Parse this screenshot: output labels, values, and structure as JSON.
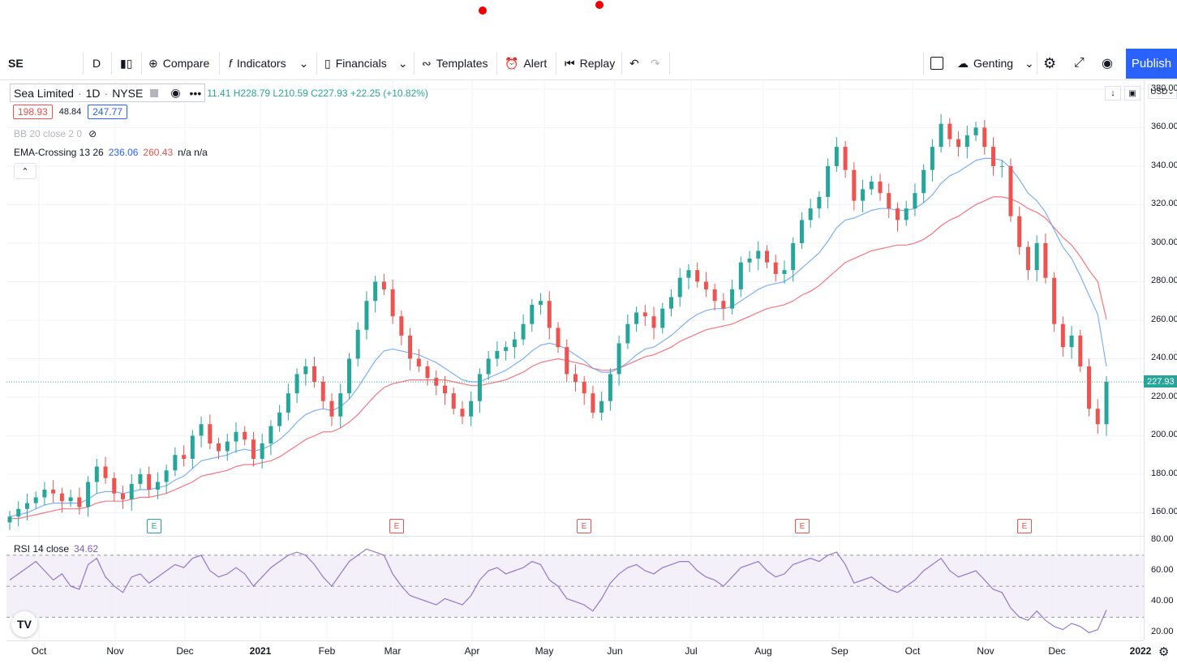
{
  "symbol": "SE",
  "interval": "D",
  "toolbar": {
    "compare": "Compare",
    "indicators": "Indicators",
    "financials": "Financials",
    "templates": "Templates",
    "alert": "Alert",
    "replay": "Replay",
    "layout": "Genting",
    "publish": "Publish"
  },
  "currency": "USD",
  "legend": {
    "title": "Sea Limited",
    "interval": "1D",
    "exchange": "NYSE",
    "ohlc": "11.41 H228.79 L210.59 C227.93 +22.25 (+10.82%)",
    "bid": "198.93",
    "spread": "48.84",
    "ask": "247.77",
    "bb": "BB 20 close 2 0",
    "ema_label": "EMA-Crossing 13 26",
    "ema_fast": "236.06",
    "ema_slow": "260.43",
    "ema_na": "n/a n/a",
    "rsi_label": "RSI 14 close",
    "rsi_value": "34.62"
  },
  "last_price": "227.93",
  "earnings_marker": "E",
  "price_axis": [
    "380.00",
    "360.00",
    "340.00",
    "320.00",
    "300.00",
    "280.00",
    "260.00",
    "240.00",
    "220.00",
    "200.00",
    "180.00",
    "160.00"
  ],
  "rsi_axis": [
    "80.00",
    "60.00",
    "40.00",
    "20.00"
  ],
  "time_axis": [
    "Oct",
    "Nov",
    "Dec",
    "2021",
    "Feb",
    "Mar",
    "Apr",
    "May",
    "Jun",
    "Jul",
    "Aug",
    "Sep",
    "Oct",
    "Nov",
    "Dec",
    "2022"
  ],
  "colors": {
    "up": "#26a69a",
    "down": "#ef5350",
    "ema_fast": "#5b9cf6",
    "ema_slow": "#f7525f",
    "rsi": "#7e57c2"
  },
  "chart_data": {
    "type": "candlestick",
    "ylim": [
      148,
      385
    ],
    "rsi_ylim": [
      15,
      82
    ],
    "close": [
      158,
      162,
      165,
      168,
      172,
      170,
      166,
      168,
      163,
      176,
      184,
      178,
      170,
      167,
      175,
      180,
      172,
      176,
      182,
      190,
      188,
      200,
      206,
      196,
      192,
      197,
      202,
      198,
      188,
      196,
      205,
      212,
      222,
      232,
      236,
      228,
      218,
      210,
      222,
      240,
      255,
      270,
      280,
      276,
      262,
      252,
      240,
      236,
      230,
      226,
      222,
      214,
      210,
      218,
      232,
      240,
      244,
      246,
      250,
      258,
      268,
      270,
      256,
      246,
      232,
      228,
      222,
      212,
      218,
      232,
      248,
      258,
      264,
      262,
      256,
      266,
      272,
      282,
      286,
      280,
      276,
      270,
      266,
      276,
      290,
      292,
      296,
      290,
      284,
      286,
      300,
      312,
      318,
      324,
      340,
      350,
      338,
      322,
      328,
      332,
      326,
      318,
      312,
      318,
      326,
      338,
      350,
      362,
      354,
      350,
      356,
      360,
      350,
      340,
      340,
      314,
      298,
      286,
      300,
      282,
      258,
      246,
      252,
      236,
      214,
      206,
      228
    ],
    "ema_fast": [
      158,
      159,
      160,
      162,
      164,
      165,
      165,
      165,
      165,
      167,
      170,
      171,
      171,
      170,
      171,
      172,
      172,
      173,
      174,
      177,
      179,
      183,
      187,
      188,
      189,
      190,
      192,
      193,
      192,
      193,
      195,
      198,
      202,
      207,
      211,
      213,
      214,
      213,
      215,
      219,
      225,
      232,
      239,
      244,
      245,
      244,
      243,
      242,
      240,
      238,
      235,
      232,
      229,
      228,
      228,
      230,
      232,
      234,
      237,
      240,
      244,
      247,
      248,
      247,
      245,
      242,
      239,
      235,
      233,
      233,
      235,
      238,
      242,
      245,
      246,
      249,
      252,
      256,
      260,
      263,
      265,
      266,
      266,
      267,
      270,
      273,
      276,
      278,
      279,
      280,
      283,
      287,
      291,
      295,
      301,
      308,
      312,
      313,
      315,
      317,
      318,
      318,
      317,
      317,
      318,
      321,
      325,
      331,
      335,
      337,
      340,
      343,
      344,
      344,
      343,
      339,
      333,
      326,
      322,
      316,
      307,
      298,
      292,
      283,
      273,
      263,
      236
    ],
    "ema_slow": [
      157,
      157,
      158,
      159,
      160,
      161,
      162,
      162,
      162,
      163,
      165,
      166,
      166,
      166,
      167,
      168,
      168,
      169,
      170,
      172,
      174,
      176,
      179,
      180,
      181,
      182,
      184,
      185,
      185,
      186,
      187,
      189,
      192,
      195,
      198,
      200,
      202,
      202,
      204,
      207,
      211,
      216,
      221,
      225,
      227,
      228,
      229,
      229,
      229,
      229,
      229,
      228,
      227,
      226,
      226,
      227,
      228,
      229,
      231,
      233,
      236,
      238,
      239,
      240,
      239,
      238,
      237,
      235,
      234,
      234,
      235,
      237,
      239,
      241,
      242,
      244,
      246,
      249,
      251,
      253,
      255,
      256,
      257,
      258,
      260,
      262,
      264,
      266,
      267,
      268,
      270,
      273,
      275,
      278,
      282,
      286,
      290,
      292,
      294,
      296,
      297,
      298,
      299,
      299,
      300,
      302,
      305,
      309,
      312,
      314,
      317,
      320,
      322,
      324,
      324,
      323,
      321,
      318,
      316,
      313,
      308,
      303,
      299,
      293,
      286,
      280,
      260.4
    ],
    "rsi": [
      54,
      58,
      62,
      66,
      60,
      54,
      58,
      50,
      48,
      64,
      68,
      56,
      50,
      46,
      56,
      58,
      52,
      56,
      60,
      64,
      62,
      68,
      70,
      60,
      56,
      58,
      62,
      58,
      50,
      56,
      62,
      66,
      70,
      72,
      70,
      64,
      56,
      50,
      58,
      66,
      70,
      74,
      72,
      70,
      58,
      50,
      44,
      42,
      40,
      38,
      42,
      40,
      38,
      44,
      54,
      60,
      62,
      58,
      60,
      62,
      66,
      64,
      54,
      50,
      42,
      40,
      38,
      34,
      42,
      52,
      58,
      62,
      64,
      60,
      58,
      62,
      64,
      66,
      66,
      60,
      56,
      54,
      50,
      56,
      62,
      64,
      66,
      60,
      56,
      58,
      64,
      66,
      68,
      66,
      70,
      72,
      64,
      52,
      54,
      56,
      52,
      48,
      46,
      50,
      54,
      60,
      64,
      68,
      60,
      56,
      58,
      60,
      54,
      48,
      46,
      36,
      30,
      28,
      34,
      28,
      24,
      22,
      26,
      24,
      20,
      22,
      34.62
    ]
  }
}
